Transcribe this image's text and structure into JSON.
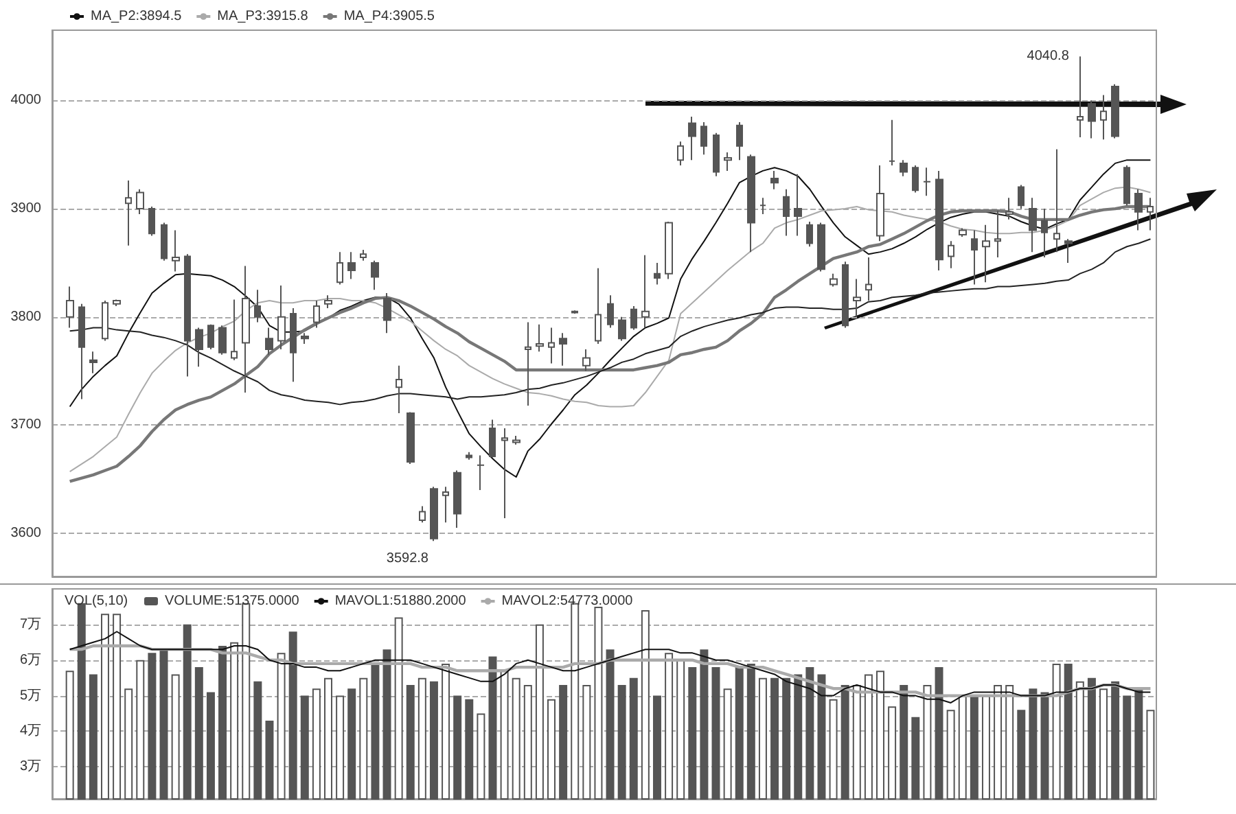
{
  "chart_data": [
    {
      "type": "candlestick",
      "categories": [
        null,
        null,
        null,
        null,
        null,
        null,
        null,
        null,
        null,
        null,
        null,
        null,
        null,
        null,
        null,
        null,
        null,
        null,
        null,
        null,
        null,
        null,
        null,
        null,
        null,
        null,
        null,
        null,
        null,
        null,
        null,
        null,
        null,
        null,
        null,
        null,
        null,
        null,
        null,
        null,
        null,
        null,
        null,
        null,
        null,
        null,
        null,
        null,
        null,
        null,
        null,
        null,
        null,
        null,
        null,
        null,
        null,
        null,
        null,
        null,
        null,
        null,
        null,
        null,
        null,
        null,
        null,
        null,
        null,
        null,
        null,
        null,
        null,
        null,
        null,
        null,
        null,
        null,
        null,
        null,
        null,
        null,
        null,
        null,
        null,
        null,
        null,
        null,
        null,
        null,
        null,
        null,
        null
      ],
      "ohlc": [
        [
          3800,
          3828,
          3790,
          3815
        ],
        [
          3809,
          3812,
          3724,
          3772
        ],
        [
          3760,
          3768,
          3748,
          3758
        ],
        [
          3780,
          3815,
          3778,
          3813
        ],
        [
          3812,
          3816,
          3810,
          3815
        ],
        [
          3905,
          3926,
          3866,
          3910
        ],
        [
          3900,
          3918,
          3895,
          3915
        ],
        [
          3900,
          3902,
          3875,
          3877
        ],
        [
          3885,
          3887,
          3852,
          3854
        ],
        [
          3852,
          3880,
          3842,
          3855
        ],
        [
          3856,
          3858,
          3745,
          3778
        ],
        [
          3788,
          3790,
          3754,
          3770
        ],
        [
          3792,
          3793,
          3770,
          3772
        ],
        [
          3790,
          3792,
          3765,
          3767
        ],
        [
          3762,
          3816,
          3760,
          3768
        ],
        [
          3776,
          3847,
          3730,
          3817
        ],
        [
          3810,
          3825,
          3795,
          3800
        ],
        [
          3780,
          3790,
          3765,
          3770
        ],
        [
          3778,
          3829,
          3770,
          3800
        ],
        [
          3803,
          3808,
          3740,
          3767
        ],
        [
          3782,
          3785,
          3775,
          3780
        ],
        [
          3795,
          3815,
          3790,
          3810
        ],
        [
          3812,
          3820,
          3808,
          3815
        ],
        [
          3832,
          3860,
          3830,
          3850
        ],
        [
          3850,
          3860,
          3835,
          3843
        ],
        [
          3855,
          3862,
          3852,
          3858
        ],
        [
          3850,
          3852,
          3825,
          3837
        ],
        [
          3817,
          3822,
          3785,
          3797
        ],
        [
          3735,
          3755,
          3711,
          3742
        ],
        [
          3711,
          3712,
          3664,
          3666
        ],
        [
          3612,
          3625,
          3610,
          3620
        ],
        [
          3641,
          3643,
          3592.8,
          3595
        ],
        [
          3635,
          3643,
          3610,
          3638
        ],
        [
          3656,
          3658,
          3605,
          3618
        ],
        [
          3672,
          3675,
          3668,
          3670
        ],
        [
          3663,
          3672,
          3640,
          3663
        ],
        [
          3697,
          3705,
          3670,
          3671
        ],
        [
          3686,
          3697,
          3614,
          3688
        ],
        [
          3684,
          3690,
          3682,
          3686
        ],
        [
          3770,
          3795,
          3718,
          3772
        ],
        [
          3773,
          3793,
          3768,
          3775
        ],
        [
          3772,
          3790,
          3757,
          3776
        ],
        [
          3780,
          3785,
          3755,
          3775
        ],
        [
          3804,
          3806,
          3803,
          3805
        ],
        [
          3755,
          3770,
          3750,
          3762
        ],
        [
          3778,
          3845,
          3775,
          3802
        ],
        [
          3812,
          3820,
          3790,
          3793
        ],
        [
          3797,
          3800,
          3778,
          3780
        ],
        [
          3807,
          3810,
          3788,
          3790
        ],
        [
          3800,
          3857,
          3790,
          3805
        ],
        [
          3840,
          3850,
          3830,
          3836
        ],
        [
          3840,
          3888,
          3835,
          3887
        ],
        [
          3945,
          3962,
          3940,
          3958
        ],
        [
          3979,
          3985,
          3945,
          3967
        ],
        [
          3976,
          3980,
          3950,
          3958
        ],
        [
          3968,
          3970,
          3930,
          3934
        ],
        [
          3945,
          3952,
          3935,
          3947
        ],
        [
          3977,
          3980,
          3945,
          3958
        ],
        [
          3948,
          3950,
          3860,
          3887
        ],
        [
          3903,
          3910,
          3895,
          3903
        ],
        [
          3928,
          3935,
          3918,
          3924
        ],
        [
          3911,
          3918,
          3875,
          3893
        ],
        [
          3900,
          3932,
          3875,
          3893
        ],
        [
          3885,
          3888,
          3865,
          3868
        ],
        [
          3885,
          3887,
          3842,
          3844
        ],
        [
          3830,
          3840,
          3828,
          3835
        ],
        [
          3848,
          3851,
          3790,
          3792
        ],
        [
          3815,
          3835,
          3800,
          3818
        ],
        [
          3825,
          3855,
          3815,
          3830
        ],
        [
          3875,
          3940,
          3870,
          3914
        ],
        [
          3944,
          3982,
          3940,
          3944
        ],
        [
          3942,
          3945,
          3930,
          3934
        ],
        [
          3938,
          3940,
          3915,
          3917
        ],
        [
          3925,
          3938,
          3912,
          3925
        ],
        [
          3927,
          3935,
          3843,
          3853
        ],
        [
          3856,
          3870,
          3845,
          3866
        ],
        [
          3876,
          3882,
          3874,
          3880
        ],
        [
          3872,
          3880,
          3830,
          3862
        ],
        [
          3865,
          3885,
          3832,
          3870
        ],
        [
          3870,
          3898,
          3855,
          3872
        ],
        [
          3895,
          3910,
          3890,
          3897
        ],
        [
          3920,
          3922,
          3900,
          3903
        ],
        [
          3900,
          3910,
          3860,
          3880
        ],
        [
          3889,
          3900,
          3855,
          3878
        ],
        [
          3872,
          3955,
          3860,
          3877
        ],
        [
          3870,
          3872,
          3850,
          3868
        ],
        [
          3982,
          4040.8,
          3966,
          3985
        ],
        [
          3997,
          4000,
          3965,
          3981
        ],
        [
          3982,
          4005,
          3964,
          3990
        ],
        [
          4013,
          4015,
          3965,
          3967
        ],
        [
          3938,
          3940,
          3903,
          3905
        ],
        [
          3914,
          3918,
          3880,
          3897
        ],
        [
          3897,
          3910,
          3880,
          3902
        ]
      ],
      "color": "#555555",
      "series": [
        {
          "type": "line",
          "name": "MA_P2:3894.5",
          "color": "#111111",
          "values": [
            3717,
            3733,
            3745,
            3755,
            3764,
            3785,
            3804,
            3822,
            3831,
            3839,
            3840,
            3839,
            3838,
            3834,
            3828,
            3819,
            3809,
            3792,
            3786,
            3786,
            3787,
            3793,
            3799,
            3806,
            3810,
            3815,
            3818,
            3818,
            3812,
            3799,
            3780,
            3762,
            3735,
            3713,
            3692,
            3680,
            3669,
            3659,
            3652,
            3676,
            3687,
            3701,
            3714,
            3728,
            3737,
            3748,
            3760,
            3771,
            3782,
            3790,
            3794,
            3799,
            3835,
            3854,
            3870,
            3887,
            3905,
            3924,
            3930,
            3935,
            3938,
            3935,
            3930,
            3918,
            3902,
            3887,
            3874,
            3866,
            3858,
            3860,
            3863,
            3868,
            3874,
            3881,
            3887,
            3892,
            3895,
            3897,
            3897,
            3895,
            3893,
            3888,
            3884,
            3881,
            3886,
            3890,
            3908,
            3920,
            3932,
            3942,
            3945,
            3945,
            3945
          ]
        },
        {
          "type": "line",
          "name": "MA_P3:3915.8",
          "color": "#aaaaaa",
          "values": [
            3657,
            3664,
            3671,
            3680,
            3689,
            3710,
            3730,
            3748,
            3759,
            3769,
            3776,
            3781,
            3785,
            3791,
            3796,
            3806,
            3813,
            3815,
            3813,
            3813,
            3815,
            3815,
            3817,
            3817,
            3815,
            3815,
            3813,
            3808,
            3802,
            3796,
            3787,
            3778,
            3770,
            3764,
            3755,
            3749,
            3743,
            3738,
            3734,
            3730,
            3729,
            3727,
            3724,
            3722,
            3721,
            3718,
            3717,
            3717,
            3718,
            3730,
            3745,
            3760,
            3803,
            3813,
            3823,
            3833,
            3843,
            3852,
            3861,
            3868,
            3882,
            3887,
            3890,
            3894,
            3898,
            3899,
            3900,
            3902,
            3899,
            3898,
            3897,
            3894,
            3892,
            3890,
            3888,
            3884,
            3881,
            3880,
            3878,
            3877,
            3877,
            3878,
            3878,
            3880,
            3884,
            3889,
            3903,
            3909,
            3915,
            3919,
            3920,
            3918,
            3915
          ]
        },
        {
          "type": "line",
          "name": "MA_P4:3905.5",
          "color": "#777777",
          "values": [
            3648,
            3651,
            3654,
            3658,
            3662,
            3671,
            3681,
            3694,
            3705,
            3714,
            3719,
            3723,
            3726,
            3732,
            3738,
            3746,
            3754,
            3766,
            3774,
            3781,
            3788,
            3794,
            3799,
            3804,
            3808,
            3813,
            3817,
            3818,
            3815,
            3810,
            3804,
            3798,
            3791,
            3785,
            3777,
            3771,
            3765,
            3759,
            3751,
            3751,
            3751,
            3751,
            3751,
            3751,
            3751,
            3751,
            3751,
            3751,
            3751,
            3753,
            3755,
            3758,
            3765,
            3767,
            3770,
            3772,
            3778,
            3787,
            3794,
            3803,
            3818,
            3825,
            3833,
            3840,
            3847,
            3854,
            3857,
            3860,
            3865,
            3867,
            3872,
            3877,
            3883,
            3889,
            3894,
            3897,
            3898,
            3898,
            3898,
            3898,
            3897,
            3893,
            3890,
            3890,
            3890,
            3890,
            3894,
            3897,
            3899,
            3900,
            3902,
            3902,
            3902
          ]
        },
        {
          "type": "line",
          "color": "#222222",
          "values": [
            3787,
            3788,
            3790,
            3790,
            3788,
            3787,
            3786,
            3783,
            3781,
            3778,
            3774,
            3767,
            3762,
            3756,
            3750,
            3745,
            3740,
            3732,
            3728,
            3726,
            3723,
            3722,
            3721,
            3719,
            3721,
            3722,
            3724,
            3727,
            3729,
            3729,
            3728,
            3727,
            3726,
            3724,
            3726,
            3726,
            3727,
            3728,
            3730,
            3733,
            3734,
            3737,
            3739,
            3742,
            3745,
            3749,
            3753,
            3758,
            3761,
            3766,
            3769,
            3772,
            3782,
            3787,
            3791,
            3794,
            3797,
            3799,
            3802,
            3804,
            3808,
            3809,
            3809,
            3808,
            3808,
            3807,
            3807,
            3808,
            3814,
            3815,
            3818,
            3819,
            3820,
            3822,
            3823,
            3824,
            3825,
            3826,
            3826,
            3828,
            3828,
            3829,
            3830,
            3831,
            3833,
            3834,
            3840,
            3844,
            3850,
            3860,
            3865,
            3868,
            3872
          ]
        }
      ],
      "ylim": [
        3560,
        4065
      ],
      "yticks": [
        3600,
        3700,
        3800,
        3900,
        4000
      ],
      "grid": "y",
      "tick_labels": "y",
      "legend": "top left",
      "line_style": "solid",
      "annotations": [
        "4040.8",
        "3592.8"
      ]
    },
    {
      "type": "bar",
      "title": "VOL(5,10)",
      "categories": [
        null,
        null,
        null,
        null,
        null,
        null,
        null,
        null,
        null,
        null,
        null,
        null,
        null,
        null,
        null,
        null,
        null,
        null,
        null,
        null,
        null,
        null,
        null,
        null,
        null,
        null,
        null,
        null,
        null,
        null,
        null,
        null,
        null,
        null,
        null,
        null,
        null,
        null,
        null,
        null,
        null,
        null,
        null,
        null,
        null,
        null,
        null,
        null,
        null,
        null,
        null,
        null,
        null,
        null,
        null,
        null,
        null,
        null,
        null,
        null,
        null,
        null,
        null,
        null,
        null,
        null,
        null,
        null,
        null,
        null,
        null,
        null,
        null,
        null,
        null,
        null,
        null,
        null,
        null,
        null,
        null,
        null,
        null,
        null,
        null,
        null,
        null,
        null,
        null,
        null,
        null,
        null,
        null
      ],
      "series": [
        {
          "type": "bar",
          "name": "VOLUME:51375.0000",
          "values": [
            5.7,
            7.6,
            5.6,
            7.3,
            7.3,
            5.2,
            6.0,
            6.2,
            6.3,
            5.6,
            7.0,
            5.8,
            5.1,
            6.4,
            6.5,
            7.6,
            5.4,
            4.3,
            6.2,
            6.8,
            5.0,
            5.2,
            5.5,
            5.0,
            5.2,
            5.5,
            5.9,
            6.3,
            7.2,
            5.3,
            5.5,
            5.4,
            5.9,
            5.0,
            4.9,
            4.5,
            6.1,
            5.7,
            5.5,
            5.3,
            7.0,
            4.9,
            5.3,
            7.6,
            5.3,
            7.5,
            6.3,
            5.3,
            5.5,
            7.4,
            5.0,
            6.2,
            6.0,
            5.8,
            6.3,
            5.8,
            5.2,
            5.8,
            5.9,
            5.5,
            5.5,
            5.5,
            5.6,
            5.8,
            5.6,
            4.9,
            5.3,
            5.3,
            5.6,
            5.7,
            4.7,
            5.3,
            4.4,
            5.3,
            5.8,
            4.6,
            5.0,
            5.0,
            5.0,
            5.3,
            5.3,
            4.6,
            5.2,
            5.1,
            5.9,
            5.9,
            5.4,
            5.5,
            5.2,
            5.4,
            5.0,
            5.2,
            4.6
          ],
          "colors": [
            "#ffffff",
            "#555555",
            "#555555",
            "#ffffff",
            "#ffffff",
            "#ffffff",
            "#ffffff",
            "#555555",
            "#555555",
            "#ffffff",
            "#555555",
            "#555555",
            "#555555",
            "#555555",
            "#ffffff",
            "#ffffff",
            "#555555",
            "#555555",
            "#ffffff",
            "#555555",
            "#555555",
            "#ffffff",
            "#ffffff",
            "#ffffff",
            "#555555",
            "#ffffff",
            "#555555",
            "#555555",
            "#ffffff",
            "#555555",
            "#ffffff",
            "#555555",
            "#ffffff",
            "#555555",
            "#555555",
            "#ffffff",
            "#555555",
            "#ffffff",
            "#ffffff",
            "#ffffff",
            "#ffffff",
            "#ffffff",
            "#555555",
            "#ffffff",
            "#ffffff",
            "#ffffff",
            "#555555",
            "#555555",
            "#555555",
            "#ffffff",
            "#555555",
            "#ffffff",
            "#ffffff",
            "#555555",
            "#555555",
            "#555555",
            "#ffffff",
            "#555555",
            "#555555",
            "#ffffff",
            "#555555",
            "#555555",
            "#555555",
            "#555555",
            "#555555",
            "#ffffff",
            "#555555",
            "#ffffff",
            "#ffffff",
            "#ffffff",
            "#ffffff",
            "#555555",
            "#555555",
            "#ffffff",
            "#555555",
            "#ffffff",
            "#ffffff",
            "#555555",
            "#ffffff",
            "#ffffff",
            "#ffffff",
            "#555555",
            "#555555",
            "#555555",
            "#ffffff",
            "#555555",
            "#ffffff",
            "#555555",
            "#ffffff",
            "#555555",
            "#555555",
            "#555555",
            "#ffffff"
          ]
        },
        {
          "type": "line",
          "name": "MAVOL1:51880.2000",
          "color": "#111111",
          "values": [
            6.3,
            6.4,
            6.5,
            6.6,
            6.8,
            6.6,
            6.4,
            6.3,
            6.3,
            6.3,
            6.3,
            6.3,
            6.3,
            6.3,
            6.4,
            6.4,
            6.3,
            6.0,
            5.9,
            5.9,
            5.8,
            5.8,
            5.7,
            5.7,
            5.8,
            5.9,
            6.0,
            6.0,
            6.0,
            6.0,
            5.9,
            5.8,
            5.7,
            5.6,
            5.5,
            5.4,
            5.4,
            5.6,
            5.9,
            6.0,
            5.9,
            5.8,
            5.7,
            5.7,
            5.8,
            5.9,
            6.0,
            6.1,
            6.2,
            6.3,
            6.3,
            6.3,
            6.2,
            6.2,
            6.1,
            6.0,
            6.0,
            5.9,
            5.8,
            5.7,
            5.6,
            5.4,
            5.3,
            5.2,
            5.0,
            5.0,
            5.2,
            5.3,
            5.2,
            5.1,
            5.1,
            5.0,
            5.0,
            4.9,
            4.9,
            4.8,
            5.0,
            5.1,
            5.1,
            5.1,
            5.1,
            5.0,
            5.0,
            5.0,
            5.1,
            5.1,
            5.2,
            5.2,
            5.3,
            5.3,
            5.2,
            5.1,
            5.1
          ]
        },
        {
          "type": "line",
          "name": "MAVOL2:54773.0000",
          "color": "#aaaaaa",
          "values": [
            6.3,
            6.3,
            6.4,
            6.4,
            6.4,
            6.4,
            6.4,
            6.3,
            6.3,
            6.3,
            6.3,
            6.3,
            6.3,
            6.2,
            6.2,
            6.2,
            6.1,
            6.0,
            6.0,
            5.9,
            5.9,
            5.9,
            5.9,
            5.9,
            5.9,
            5.9,
            5.9,
            5.9,
            5.9,
            5.9,
            5.8,
            5.8,
            5.8,
            5.7,
            5.7,
            5.7,
            5.7,
            5.7,
            5.8,
            5.8,
            5.8,
            5.8,
            5.8,
            5.9,
            5.9,
            5.9,
            6.0,
            6.0,
            6.0,
            6.0,
            6.0,
            6.0,
            6.0,
            6.0,
            5.9,
            5.9,
            5.9,
            5.8,
            5.8,
            5.8,
            5.7,
            5.6,
            5.5,
            5.4,
            5.3,
            5.2,
            5.2,
            5.1,
            5.1,
            5.1,
            5.1,
            5.1,
            5.1,
            5.0,
            5.0,
            5.0,
            5.0,
            5.0,
            5.0,
            5.0,
            5.0,
            5.0,
            5.0,
            5.0,
            5.0,
            5.1,
            5.2,
            5.2,
            5.3,
            5.3,
            5.2,
            5.2,
            5.2
          ]
        }
      ],
      "ylim": [
        2.1,
        8
      ],
      "yticks": [
        {
          "value": 3,
          "label": "3万"
        },
        {
          "value": 4,
          "label": "4万"
        },
        {
          "value": 5,
          "label": "5万"
        },
        {
          "value": 6,
          "label": "6万"
        },
        {
          "value": 7,
          "label": "7万"
        }
      ],
      "grid": "y",
      "tick_labels": "y",
      "legend": "top left",
      "line_style": "solid"
    }
  ]
}
